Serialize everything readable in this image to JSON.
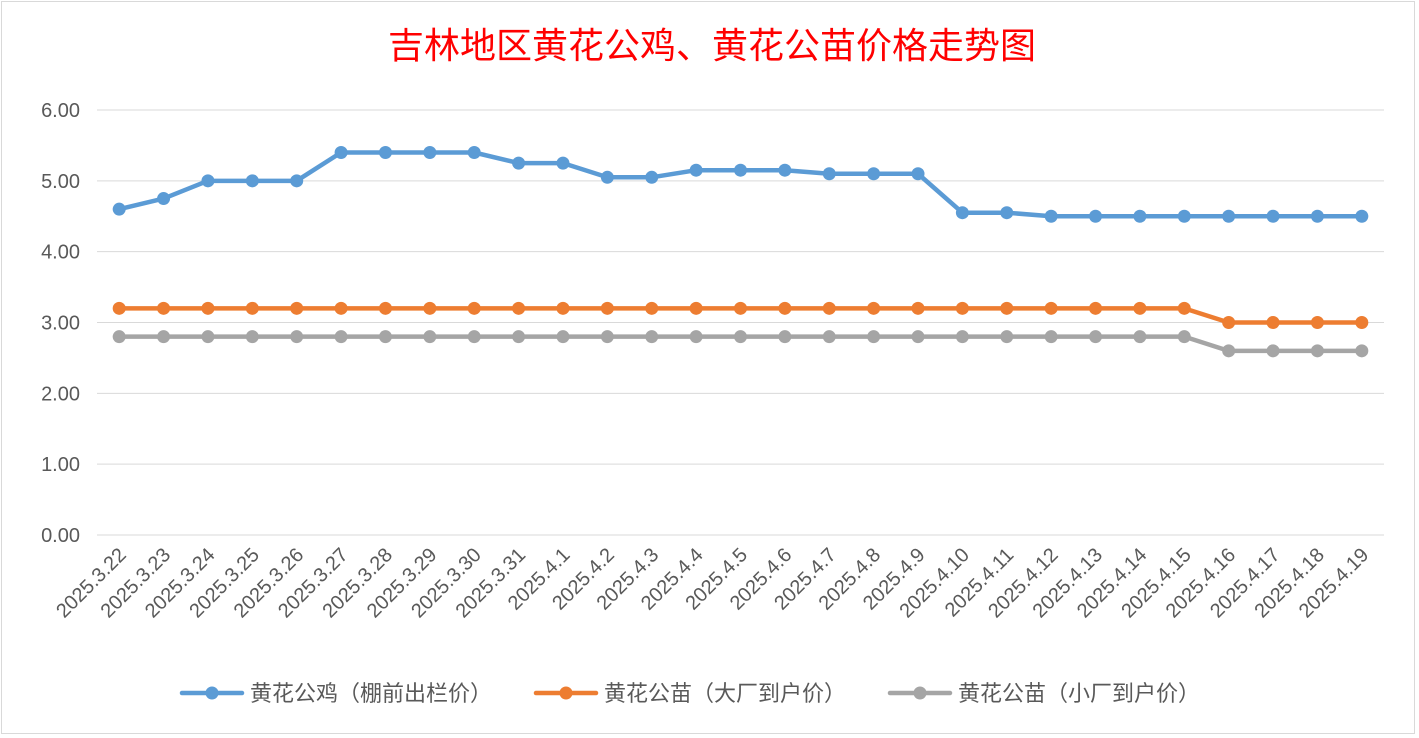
{
  "chart_data": {
    "type": "line",
    "title": "吉林地区黄花公鸡、黄花公苗价格走势图",
    "xlabel": "",
    "ylabel": "",
    "ylim": [
      0,
      6
    ],
    "yticks": [
      "0.00",
      "1.00",
      "2.00",
      "3.00",
      "4.00",
      "5.00",
      "6.00"
    ],
    "grid": true,
    "legend_position": "bottom",
    "categories": [
      "2025.3.22",
      "2025.3.23",
      "2025.3.24",
      "2025.3.25",
      "2025.3.26",
      "2025.3.27",
      "2025.3.28",
      "2025.3.29",
      "2025.3.30",
      "2025.3.31",
      "2025.4.1",
      "2025.4.2",
      "2025.4.3",
      "2025.4.4",
      "2025.4.5",
      "2025.4.6",
      "2025.4.7",
      "2025.4.8",
      "2025.4.9",
      "2025.4.10",
      "2025.4.11",
      "2025.4.12",
      "2025.4.13",
      "2025.4.14",
      "2025.4.15",
      "2025.4.16",
      "2025.4.17",
      "2025.4.18",
      "2025.4.19"
    ],
    "series": [
      {
        "name": "黄花公鸡（棚前出栏价）",
        "color": "#5b9bd5",
        "values": [
          4.6,
          4.75,
          5.0,
          5.0,
          5.0,
          5.4,
          5.4,
          5.4,
          5.4,
          5.25,
          5.25,
          5.05,
          5.05,
          5.15,
          5.15,
          5.15,
          5.1,
          5.1,
          5.1,
          4.55,
          4.55,
          4.5,
          4.5,
          4.5,
          4.5,
          4.5,
          4.5,
          4.5,
          4.5
        ]
      },
      {
        "name": "黄花公苗（大厂到户价）",
        "color": "#ed7d31",
        "values": [
          3.2,
          3.2,
          3.2,
          3.2,
          3.2,
          3.2,
          3.2,
          3.2,
          3.2,
          3.2,
          3.2,
          3.2,
          3.2,
          3.2,
          3.2,
          3.2,
          3.2,
          3.2,
          3.2,
          3.2,
          3.2,
          3.2,
          3.2,
          3.2,
          3.2,
          3.0,
          3.0,
          3.0,
          3.0
        ]
      },
      {
        "name": "黄花公苗（小厂到户价）",
        "color": "#a5a5a5",
        "values": [
          2.8,
          2.8,
          2.8,
          2.8,
          2.8,
          2.8,
          2.8,
          2.8,
          2.8,
          2.8,
          2.8,
          2.8,
          2.8,
          2.8,
          2.8,
          2.8,
          2.8,
          2.8,
          2.8,
          2.8,
          2.8,
          2.8,
          2.8,
          2.8,
          2.8,
          2.6,
          2.6,
          2.6,
          2.6
        ]
      }
    ]
  }
}
